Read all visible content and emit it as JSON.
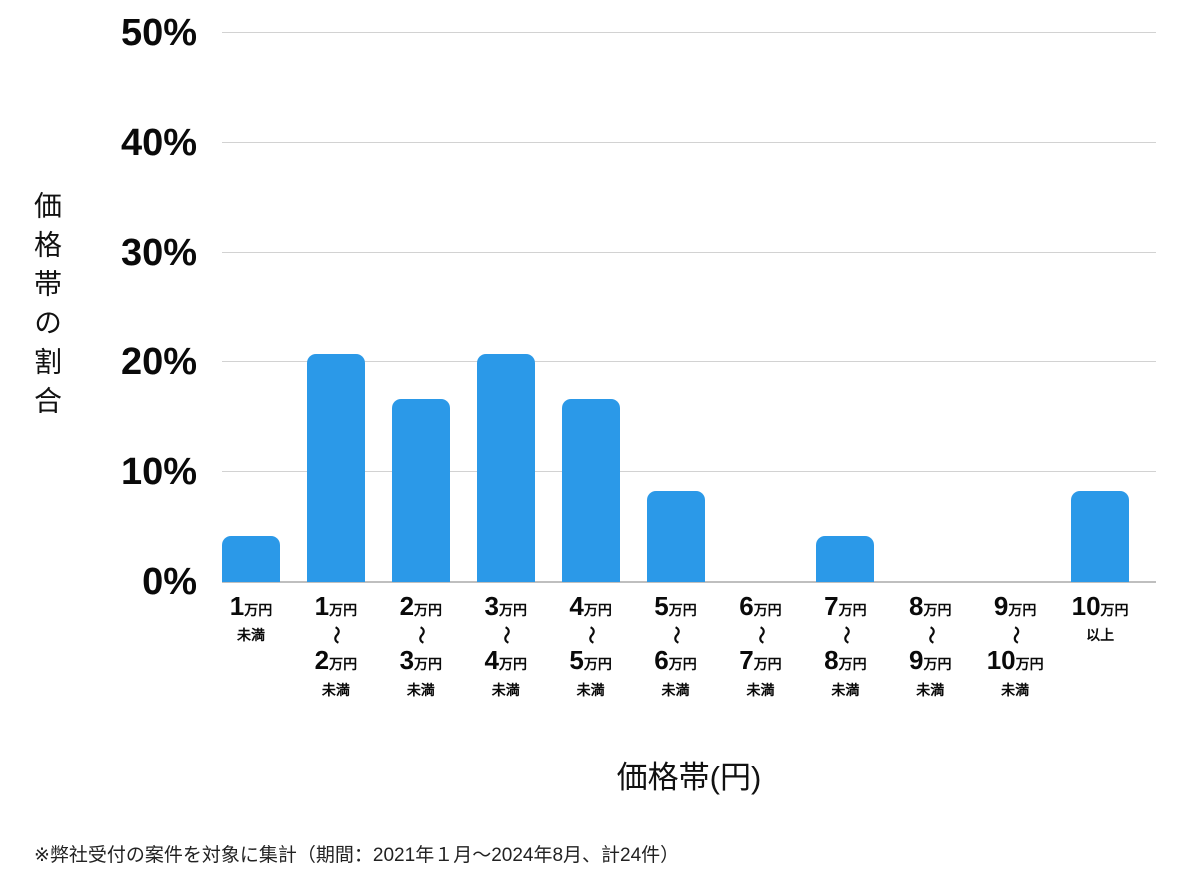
{
  "chart_data": {
    "type": "bar",
    "title": "",
    "xlabel": "価格帯(円)",
    "ylabel": "価格帯の割合",
    "ylim": [
      0,
      50
    ],
    "ytick_step": 10,
    "yticks": [
      "50%",
      "40%",
      "30%",
      "20%",
      "10%",
      "0%"
    ],
    "grid": true,
    "legend": false,
    "bar_color": "#2B99E8",
    "grid_color": "#d2d2d2",
    "baseline_color": "#bfbfbf",
    "text_color": "#111111",
    "tilde_char": "〜",
    "categories": [
      {
        "from": "1",
        "from_unit": "万円",
        "to": "",
        "to_unit": "",
        "note": "未満"
      },
      {
        "from": "1",
        "from_unit": "万円",
        "to": "2",
        "to_unit": "万円",
        "note": "未満"
      },
      {
        "from": "2",
        "from_unit": "万円",
        "to": "3",
        "to_unit": "万円",
        "note": "未満"
      },
      {
        "from": "3",
        "from_unit": "万円",
        "to": "4",
        "to_unit": "万円",
        "note": "未満"
      },
      {
        "from": "4",
        "from_unit": "万円",
        "to": "5",
        "to_unit": "万円",
        "note": "未満"
      },
      {
        "from": "5",
        "from_unit": "万円",
        "to": "6",
        "to_unit": "万円",
        "note": "未満"
      },
      {
        "from": "6",
        "from_unit": "万円",
        "to": "7",
        "to_unit": "万円",
        "note": "未満"
      },
      {
        "from": "7",
        "from_unit": "万円",
        "to": "8",
        "to_unit": "万円",
        "note": "未満"
      },
      {
        "from": "8",
        "from_unit": "万円",
        "to": "9",
        "to_unit": "万円",
        "note": "未満"
      },
      {
        "from": "9",
        "from_unit": "万円",
        "to": "10",
        "to_unit": "万円",
        "note": "未満"
      },
      {
        "from": "10",
        "from_unit": "万円",
        "to": "",
        "to_unit": "",
        "note": "以上"
      }
    ],
    "values": [
      4.2,
      20.8,
      16.7,
      20.8,
      16.7,
      8.3,
      0,
      4.2,
      0,
      0,
      8.3
    ]
  },
  "footnote": "※弊社受付の案件を対象に集計（期間：2021年１月～2024年8月、計24件）"
}
